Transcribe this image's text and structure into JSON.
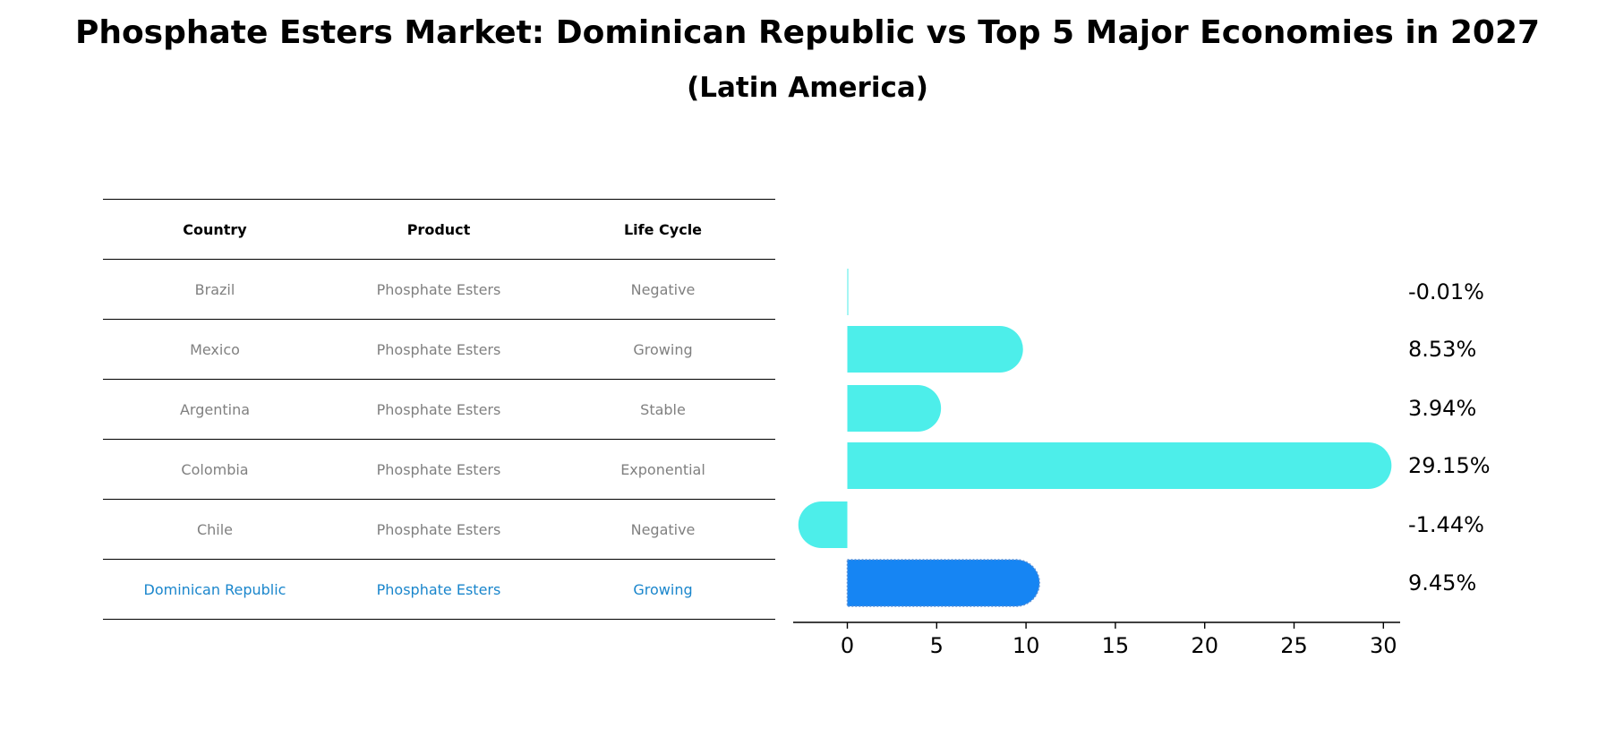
{
  "title": "Phosphate Esters Market: Dominican Republic vs Top 5 Major Economies in 2027",
  "subtitle": "(Latin America)",
  "table": {
    "headers": [
      "Country",
      "Product",
      "Life Cycle"
    ],
    "rows": [
      {
        "country": "Brazil",
        "product": "Phosphate Esters",
        "life_cycle": "Negative"
      },
      {
        "country": "Mexico",
        "product": "Phosphate Esters",
        "life_cycle": "Growing"
      },
      {
        "country": "Argentina",
        "product": "Phosphate Esters",
        "life_cycle": "Stable"
      },
      {
        "country": "Colombia",
        "product": "Phosphate Esters",
        "life_cycle": "Exponential"
      },
      {
        "country": "Chile",
        "product": "Phosphate Esters",
        "life_cycle": "Negative"
      },
      {
        "country": "Dominican Republic",
        "product": "Phosphate Esters",
        "life_cycle": "Growing"
      }
    ]
  },
  "chart_data": {
    "type": "bar",
    "orientation": "horizontal",
    "categories": [
      "Brazil",
      "Mexico",
      "Argentina",
      "Colombia",
      "Chile",
      "Dominican Republic"
    ],
    "values": [
      -0.01,
      8.53,
      3.94,
      29.15,
      -1.44,
      9.45
    ],
    "value_labels": [
      "-0.01%",
      "8.53%",
      "3.94%",
      "29.15%",
      "-1.44%",
      "9.45%"
    ],
    "highlight_index": 5,
    "colors": {
      "default": "#4deeea",
      "highlight": "#1685f3",
      "text": "#000000"
    },
    "xlim": [
      -3,
      30.5
    ],
    "xticks": [
      0,
      5,
      10,
      15,
      20,
      25,
      30
    ],
    "title": "",
    "xlabel": "",
    "ylabel": ""
  }
}
